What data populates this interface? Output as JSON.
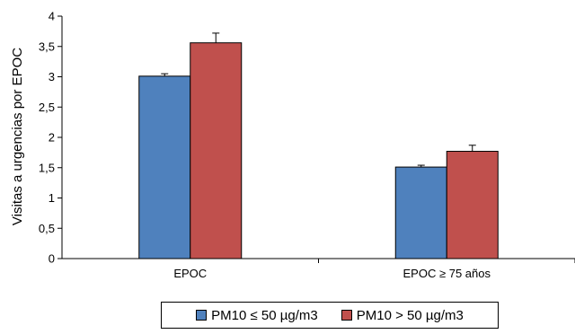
{
  "chart_data": {
    "type": "bar",
    "categories": [
      "EPOC",
      "EPOC ≥ 75 años"
    ],
    "series": [
      {
        "name": "PM10 ≤ 50 µg/m3",
        "values": [
          3.01,
          1.51
        ],
        "errors": [
          0.04,
          0.03
        ],
        "color": "#4f81bd"
      },
      {
        "name": "PM10 > 50 µg/m3",
        "values": [
          3.56,
          1.77
        ],
        "errors": [
          0.16,
          0.1
        ],
        "color": "#c0504d"
      }
    ],
    "title": "",
    "xlabel": "",
    "ylabel": "Visitas a urgencias por EPOC",
    "ylim": [
      0,
      4
    ],
    "yticks": [
      "0",
      "0,5",
      "1",
      "1,5",
      "2",
      "2,5",
      "3",
      "3,5",
      "4"
    ],
    "grid": false,
    "legend": "bottom"
  }
}
